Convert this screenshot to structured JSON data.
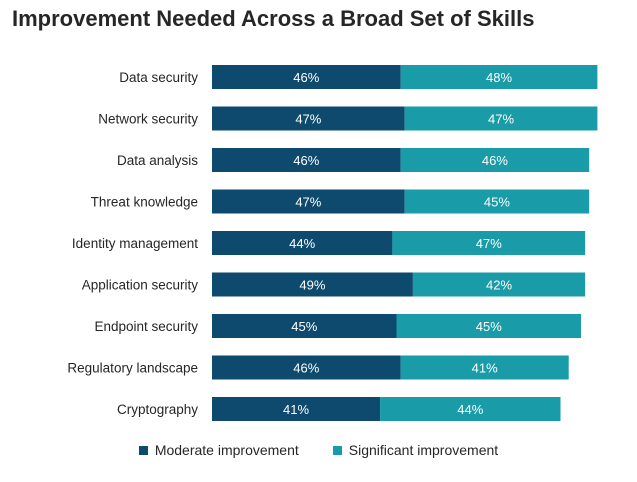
{
  "chart_data": {
    "type": "bar",
    "orientation": "horizontal",
    "stacked": true,
    "title": "Improvement Needed Across a Broad Set of Skills",
    "categories": [
      "Data security",
      "Network security",
      "Data analysis",
      "Threat knowledge",
      "Identity management",
      "Application security",
      "Endpoint security",
      "Regulatory landscape",
      "Cryptography"
    ],
    "series": [
      {
        "name": "Moderate improvement",
        "color": "#0e4a6e",
        "values": [
          46,
          47,
          46,
          47,
          44,
          49,
          45,
          46,
          41
        ],
        "labels": [
          "46%",
          "47%",
          "46%",
          "47%",
          "44%",
          "49%",
          "45%",
          "46%",
          "41%"
        ]
      },
      {
        "name": "Significant improvement",
        "color": "#1a9ba8",
        "values": [
          48,
          47,
          46,
          45,
          47,
          42,
          45,
          41,
          44
        ],
        "labels": [
          "48%",
          "47%",
          "46%",
          "45%",
          "47%",
          "42%",
          "45%",
          "41%",
          "44%"
        ]
      }
    ],
    "unit": "%",
    "grid": false,
    "legend_position": "bottom"
  }
}
